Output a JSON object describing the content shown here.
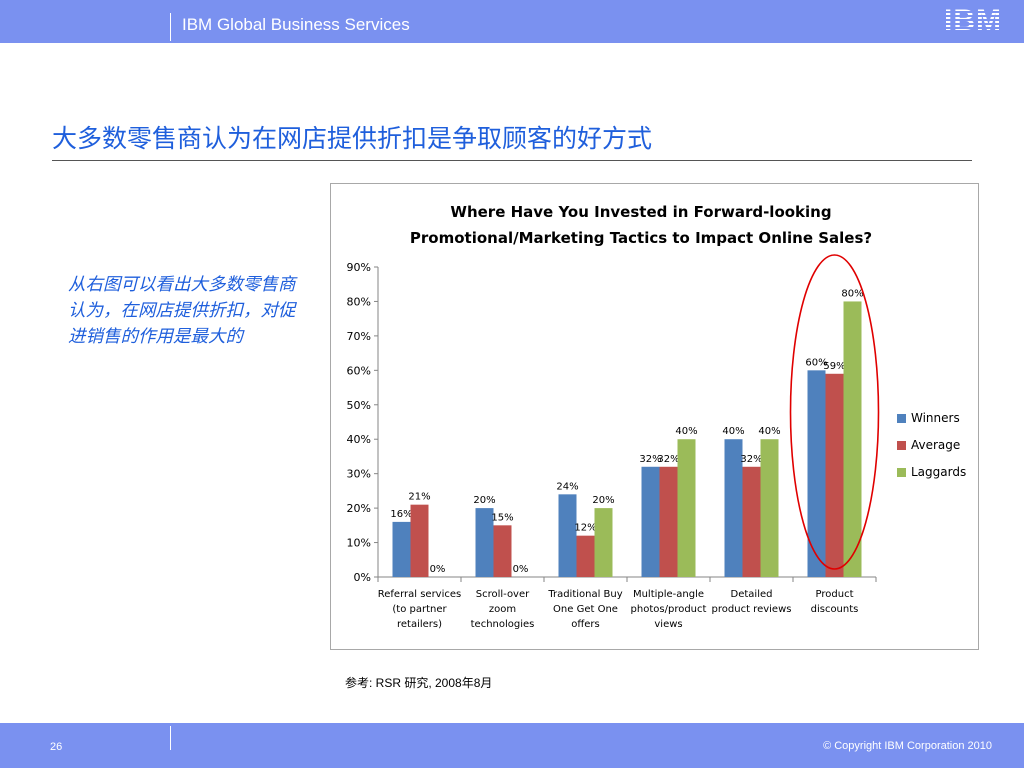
{
  "header": {
    "title": "IBM Global Business Services",
    "logo_text": "IBM"
  },
  "slide": {
    "title": "大多数零售商认为在网店提供折扣是争取顾客的好方式",
    "side_note": "从右图可以看出大多数零售商认为，在网店提供折扣，对促进销售的作用是最大的",
    "reference": "参考: RSR 研究, 2008年8月"
  },
  "footer": {
    "page_number": "26",
    "copyright": "© Copyright IBM Corporation 2010"
  },
  "chart_data": {
    "type": "bar",
    "title": "Where Have You Invested in Forward-looking Promotional/Marketing Tactics to Impact Online Sales?",
    "title_lines": [
      "Where Have You Invested in Forward-looking",
      "Promotional/Marketing Tactics to Impact Online Sales?"
    ],
    "categories": [
      [
        "Referral services",
        "(to partner",
        "retailers)"
      ],
      [
        "Scroll-over",
        "zoom",
        "technologies"
      ],
      [
        "Traditional Buy",
        "One Get One",
        "offers"
      ],
      [
        "Multiple-angle",
        "photos/product",
        "views"
      ],
      [
        "Detailed",
        "product reviews"
      ],
      [
        "Product",
        "discounts"
      ]
    ],
    "series": [
      {
        "name": "Winners",
        "color": "#4f81bd",
        "values": [
          16,
          20,
          24,
          32,
          40,
          60
        ]
      },
      {
        "name": "Average",
        "color": "#c0504d",
        "values": [
          21,
          15,
          12,
          32,
          32,
          59
        ]
      },
      {
        "name": "Laggards",
        "color": "#9bbb59",
        "values": [
          0,
          0,
          20,
          40,
          40,
          80
        ]
      }
    ],
    "data_labels": [
      [
        "16%",
        "20%",
        "24%",
        "32%",
        "40%",
        "60%"
      ],
      [
        "21%",
        "15%",
        "12%",
        "32%",
        "32%",
        "59%"
      ],
      [
        "0%",
        "0%",
        "20%",
        "40%",
        "40%",
        "80%"
      ]
    ],
    "y_ticks": [
      "0%",
      "10%",
      "20%",
      "30%",
      "40%",
      "50%",
      "60%",
      "70%",
      "80%",
      "90%"
    ],
    "ylim": [
      0,
      90
    ],
    "grid": false,
    "legend_position": "right",
    "highlight": {
      "category_index": 5,
      "shape": "ellipse",
      "color": "#e00000"
    }
  }
}
